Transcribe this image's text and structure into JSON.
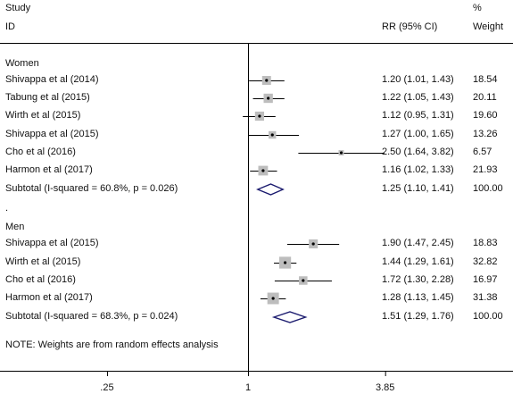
{
  "header": {
    "study_label": "Study",
    "id_label": "ID",
    "rr_label": "RR (95% CI)",
    "pct_label": "%",
    "weight_label": "Weight"
  },
  "chart_data": {
    "type": "forest",
    "x_scale": "log",
    "null_line": 1,
    "x_ticks": [
      ".25",
      "1",
      "3.85"
    ],
    "x_tick_values": [
      0.25,
      1,
      3.85
    ],
    "groups": [
      {
        "name": "Women",
        "studies": [
          {
            "label": "Shivappa et al (2014)",
            "rr": 1.2,
            "lo": 1.01,
            "hi": 1.43,
            "ci_text": "1.20 (1.01, 1.43)",
            "weight": "18.54"
          },
          {
            "label": "Tabung  et al (2015)",
            "rr": 1.22,
            "lo": 1.05,
            "hi": 1.43,
            "ci_text": "1.22 (1.05, 1.43)",
            "weight": "20.11"
          },
          {
            "label": "Wirth et al (2015)",
            "rr": 1.12,
            "lo": 0.95,
            "hi": 1.31,
            "ci_text": "1.12 (0.95, 1.31)",
            "weight": "19.60"
          },
          {
            "label": "Shivappa et al  (2015)",
            "rr": 1.27,
            "lo": 1.0,
            "hi": 1.65,
            "ci_text": "1.27 (1.00, 1.65)",
            "weight": "13.26"
          },
          {
            "label": "Cho et al (2016)",
            "rr": 2.5,
            "lo": 1.64,
            "hi": 3.82,
            "ci_text": "2.50 (1.64, 3.82)",
            "weight": "6.57"
          },
          {
            "label": "Harmon et al  (2017)",
            "rr": 1.16,
            "lo": 1.02,
            "hi": 1.33,
            "ci_text": "1.16 (1.02, 1.33)",
            "weight": "21.93"
          }
        ],
        "subtotal": {
          "label": "Subtotal  (I-squared = 60.8%, p = 0.026)",
          "rr": 1.25,
          "lo": 1.1,
          "hi": 1.41,
          "ci_text": "1.25 (1.10, 1.41)",
          "weight": "100.00"
        }
      },
      {
        "name": "Men",
        "studies": [
          {
            "label": "Shivappa et al (2015)",
            "rr": 1.9,
            "lo": 1.47,
            "hi": 2.45,
            "ci_text": "1.90 (1.47, 2.45)",
            "weight": "18.83"
          },
          {
            "label": "Wirth et al (2015)",
            "rr": 1.44,
            "lo": 1.29,
            "hi": 1.61,
            "ci_text": "1.44 (1.29, 1.61)",
            "weight": "32.82"
          },
          {
            "label": "Cho et al (2016)",
            "rr": 1.72,
            "lo": 1.3,
            "hi": 2.28,
            "ci_text": "1.72 (1.30, 2.28)",
            "weight": "16.97"
          },
          {
            "label": "Harmon et al  (2017)",
            "rr": 1.28,
            "lo": 1.13,
            "hi": 1.45,
            "ci_text": "1.28 (1.13, 1.45)",
            "weight": "31.38"
          }
        ],
        "subtotal": {
          "label": "Subtotal  (I-squared = 68.3%, p = 0.024)",
          "rr": 1.51,
          "lo": 1.29,
          "hi": 1.76,
          "ci_text": "1.51 (1.29, 1.76)",
          "weight": "100.00"
        }
      }
    ],
    "separator": ".",
    "note": "NOTE: Weights are from random effects analysis",
    "colors": {
      "diamond": "#1a1a6e",
      "box": "#bdbdbd",
      "line": "#000000"
    }
  }
}
